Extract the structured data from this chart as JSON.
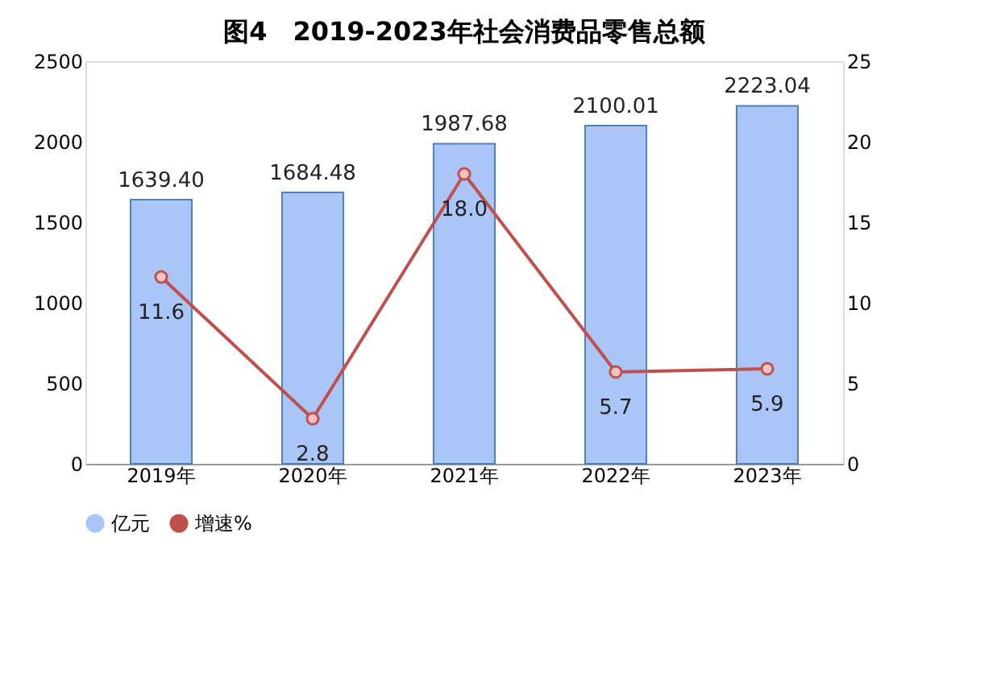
{
  "chart_data": {
    "type": "bar",
    "title": "图4　2019-2023年社会消费品零售总额",
    "categories": [
      "2019年",
      "2020年",
      "2021年",
      "2022年",
      "2023年"
    ],
    "series": [
      {
        "name": "亿元",
        "color": "#a9c6f7",
        "values": [
          1639.4,
          1684.48,
          1987.68,
          2100.01,
          2223.04
        ],
        "value_labels": [
          "1639.40",
          "1684.48",
          "1987.68",
          "2100.01",
          "2223.04"
        ]
      },
      {
        "name": "增速%",
        "type": "line",
        "axis": "y2",
        "color": "#c0504d",
        "marker": "circle",
        "values": [
          11.6,
          2.8,
          18.0,
          5.7,
          5.9
        ],
        "value_labels": [
          "11.6",
          "2.8",
          "18.0",
          "5.7",
          "5.9"
        ]
      }
    ],
    "ylim": [
      0,
      2500
    ],
    "yticks": [
      0,
      500,
      1000,
      1500,
      2000,
      2500
    ],
    "y2lim": [
      0,
      25
    ],
    "y2ticks": [
      0,
      5,
      10,
      15,
      20,
      25
    ],
    "grid": false,
    "legend": "bottom"
  }
}
